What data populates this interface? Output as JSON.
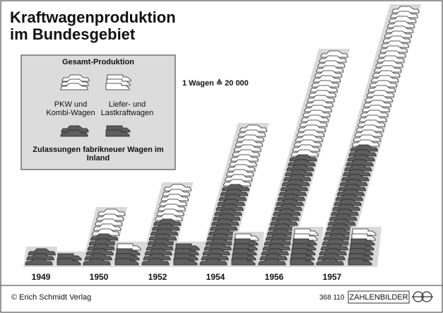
{
  "chart_data": {
    "type": "pictogram",
    "title": [
      "Kraftwagenproduktion",
      "im Bundesgebiet"
    ],
    "unit_note": "1 Wagen ≙ 20 000",
    "icon_value": 20000,
    "categories": [
      "1949",
      "1950",
      "1952",
      "1954",
      "1956",
      "1957"
    ],
    "production_label": "Gesamt-Produktion",
    "production_color": "#ffffff",
    "registration_color": "#5e5e5e",
    "band_color": "#d9d9d9",
    "series": [
      {
        "name": "PKW und Kombi-Wagen",
        "icon": "car",
        "values": [
          60000,
          220000,
          320000,
          560000,
          860000,
          1040000
        ]
      },
      {
        "name": "Liefer- und Lastkraftwagen",
        "icon": "truck",
        "values": [
          40000,
          80000,
          80000,
          120000,
          140000,
          140000
        ]
      }
    ],
    "registrations": {
      "label": "Zulassungen fabrikneuer Wagen im Inland",
      "series": [
        {
          "icon": "car",
          "values": [
            60000,
            120000,
            180000,
            320000,
            440000,
            480000
          ]
        },
        {
          "icon": "truck",
          "values": [
            40000,
            60000,
            80000,
            100000,
            100000,
            100000
          ]
        }
      ]
    },
    "source": "© Erich Schmidt Verlag",
    "code": "368 110",
    "brand": "ZAHLENBILDER"
  }
}
